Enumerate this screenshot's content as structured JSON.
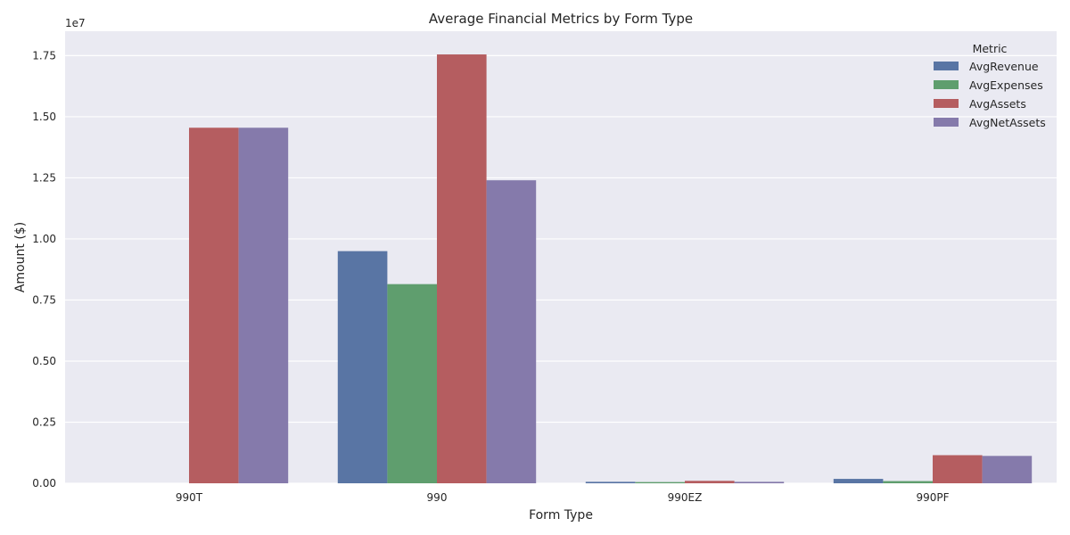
{
  "chart_data": {
    "type": "bar",
    "title": "Average Financial Metrics by Form Type",
    "xlabel": "Form Type",
    "ylabel": "Amount ($)",
    "y_offset_label": "1e7",
    "y_scale": 10000000,
    "ylim": [
      0,
      18500000
    ],
    "yticks": [
      0,
      2500000,
      5000000,
      7500000,
      10000000,
      12500000,
      15000000,
      17500000
    ],
    "ytick_labels": [
      "0.00",
      "0.25",
      "0.50",
      "0.75",
      "1.00",
      "1.25",
      "1.50",
      "1.75"
    ],
    "categories": [
      "990T",
      "990",
      "990EZ",
      "990PF"
    ],
    "legend_title": "Metric",
    "legend_position": "top-right",
    "grid": true,
    "series": [
      {
        "name": "AvgRevenue",
        "color": "#5975a4",
        "values": [
          0,
          9500000,
          60000,
          180000
        ]
      },
      {
        "name": "AvgExpenses",
        "color": "#5f9e6e",
        "values": [
          0,
          8150000,
          50000,
          90000
        ]
      },
      {
        "name": "AvgAssets",
        "color": "#b55d60",
        "values": [
          14550000,
          17550000,
          100000,
          1150000
        ]
      },
      {
        "name": "AvgNetAssets",
        "color": "#857aab",
        "values": [
          14550000,
          12400000,
          60000,
          1120000
        ]
      }
    ]
  },
  "style": {
    "plot_background": "#eaeaf2",
    "grid_color": "#ffffff"
  }
}
